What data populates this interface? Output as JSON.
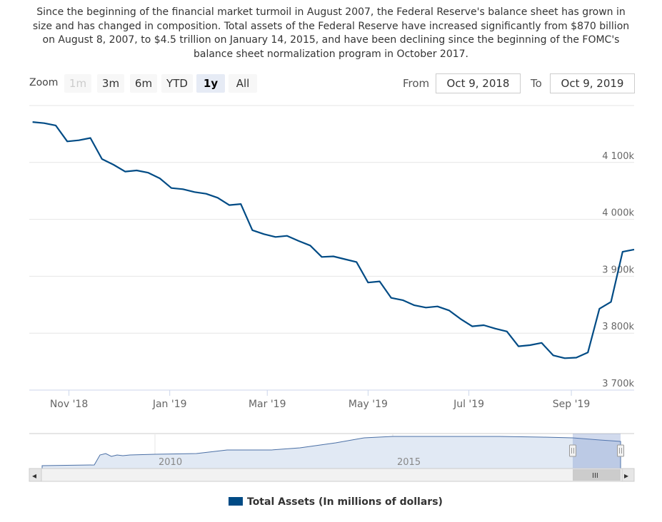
{
  "caption": "Since the beginning of the financial market turmoil in August 2007, the Federal Reserve's balance sheet has grown in size and has changed in composition. Total assets of the Federal Reserve have increased significantly from $870 billion on August 8, 2007, to $4.5 trillion on January 14, 2015, and have been declining since the beginning of the FOMC's balance sheet normalization program in October 2017.",
  "zoom": {
    "label": "Zoom",
    "buttons": [
      "1m",
      "3m",
      "6m",
      "YTD",
      "1y",
      "All"
    ],
    "selected": "1y",
    "disabled": [
      "1m"
    ]
  },
  "range": {
    "from_label": "From",
    "from_value": "Oct 9, 2018",
    "to_label": "To",
    "to_value": "Oct 9, 2019"
  },
  "navigator": {
    "year_labels": [
      "2010",
      "2015"
    ],
    "scroll_left": "◂",
    "scroll_right": "▸",
    "scroll_grip": "III"
  },
  "colors": {
    "series": "#004b85",
    "navigator_fill": "#e1e9f4",
    "navigator_mask": "rgba(102,133,194,0.3)"
  },
  "chart_data": {
    "type": "line",
    "title": "",
    "xlabel": "",
    "ylabel": "",
    "ylim": [
      3700,
      4200
    ],
    "yticks": [
      3700,
      3800,
      3900,
      4000,
      4100
    ],
    "ytick_labels": [
      "3 700k",
      "3 800k",
      "3 900k",
      "4 000k",
      "4 100k"
    ],
    "xticks": [
      {
        "date": "2018-11-01",
        "label": "Nov '18"
      },
      {
        "date": "2019-01-01",
        "label": "Jan '19"
      },
      {
        "date": "2019-03-01",
        "label": "Mar '19"
      },
      {
        "date": "2019-05-01",
        "label": "May '19"
      },
      {
        "date": "2019-07-01",
        "label": "Jul '19"
      },
      {
        "date": "2019-09-01",
        "label": "Sep '19"
      }
    ],
    "grid": true,
    "legend": "bottom",
    "series": [
      {
        "name": "Total Assets (In millions of dollars)",
        "x": [
          "2018-10-10",
          "2018-10-17",
          "2018-10-24",
          "2018-10-31",
          "2018-11-07",
          "2018-11-14",
          "2018-11-21",
          "2018-11-28",
          "2018-12-05",
          "2018-12-12",
          "2018-12-19",
          "2018-12-26",
          "2019-01-02",
          "2019-01-09",
          "2019-01-16",
          "2019-01-23",
          "2019-01-30",
          "2019-02-06",
          "2019-02-13",
          "2019-02-20",
          "2019-02-27",
          "2019-03-06",
          "2019-03-13",
          "2019-03-20",
          "2019-03-27",
          "2019-04-03",
          "2019-04-10",
          "2019-04-17",
          "2019-04-24",
          "2019-05-01",
          "2019-05-08",
          "2019-05-15",
          "2019-05-22",
          "2019-05-29",
          "2019-06-05",
          "2019-06-12",
          "2019-06-19",
          "2019-06-26",
          "2019-07-03",
          "2019-07-10",
          "2019-07-17",
          "2019-07-24",
          "2019-07-31",
          "2019-08-07",
          "2019-08-14",
          "2019-08-21",
          "2019-08-28",
          "2019-09-04",
          "2019-09-11",
          "2019-09-18",
          "2019-09-25",
          "2019-10-02",
          "2019-10-09"
        ],
        "values": [
          4171,
          4169,
          4165,
          4137,
          4139,
          4143,
          4106,
          4096,
          4084,
          4086,
          4082,
          4072,
          4055,
          4053,
          4048,
          4045,
          4038,
          4025,
          4027,
          3981,
          3974,
          3969,
          3971,
          3962,
          3954,
          3934,
          3935,
          3930,
          3925,
          3889,
          3891,
          3862,
          3858,
          3849,
          3845,
          3847,
          3840,
          3825,
          3812,
          3814,
          3808,
          3803,
          3777,
          3779,
          3783,
          3761,
          3756,
          3757,
          3766,
          3843,
          3855,
          3943,
          3947
        ]
      }
    ]
  }
}
